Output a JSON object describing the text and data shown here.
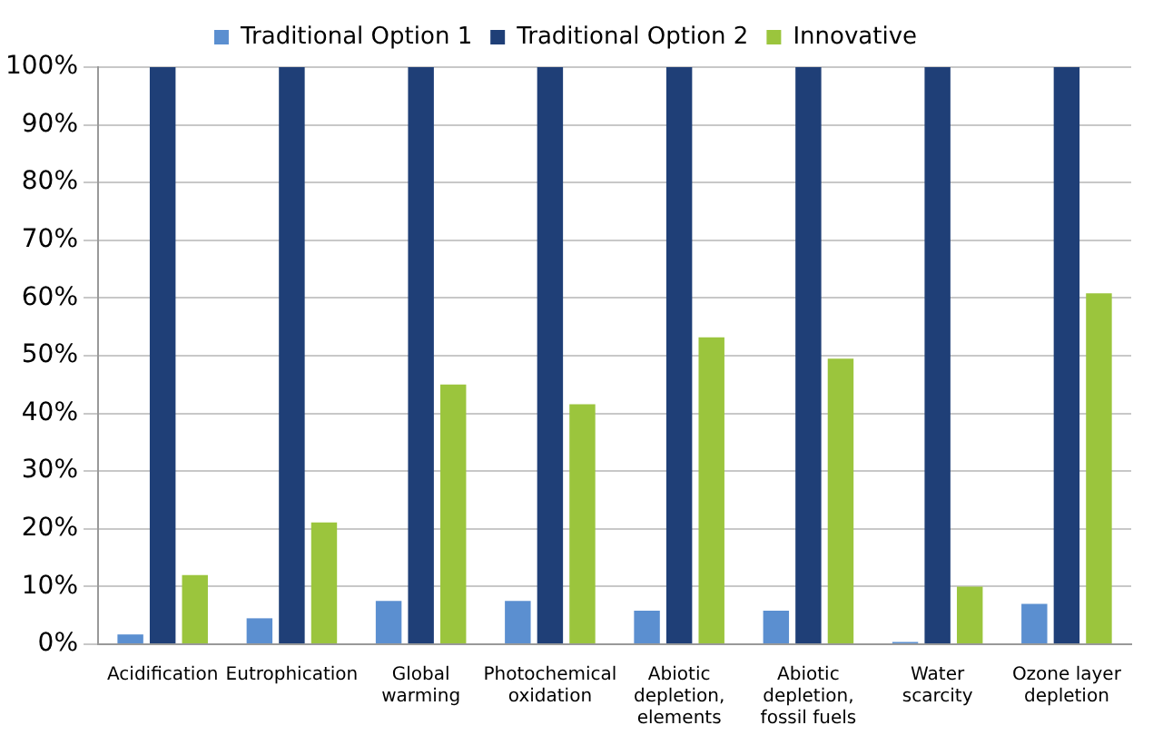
{
  "chart_data": {
    "type": "bar",
    "categories": [
      "Acidification",
      "Eutrophication",
      "Global warming",
      "Photochemical oxidation",
      "Abiotic depletion, elements",
      "Abiotic depletion, fossil fuels",
      "Water scarcity",
      "Ozone layer depletion"
    ],
    "series": [
      {
        "name": "Traditional Option 1",
        "color": "#5b8fd0",
        "values": [
          1.7,
          4.5,
          7.5,
          7.5,
          5.8,
          5.8,
          0.4,
          7.0
        ]
      },
      {
        "name": "Traditional Option 2",
        "color": "#1f3f77",
        "values": [
          100,
          100,
          100,
          100,
          100,
          100,
          100,
          100
        ]
      },
      {
        "name": "Innovative",
        "color": "#9bc53d",
        "values": [
          12,
          21.1,
          45,
          41.6,
          53.2,
          49.5,
          10,
          60.8
        ]
      }
    ],
    "ylim": [
      0,
      100
    ],
    "yticks": [
      {
        "value": 0,
        "label": "0%"
      },
      {
        "value": 10,
        "label": "10%"
      },
      {
        "value": 20,
        "label": "20%"
      },
      {
        "value": 30,
        "label": "30%"
      },
      {
        "value": 40,
        "label": "40%"
      },
      {
        "value": 50,
        "label": "50%"
      },
      {
        "value": 60,
        "label": "60%"
      },
      {
        "value": 70,
        "label": "70%"
      },
      {
        "value": 80,
        "label": "80%"
      },
      {
        "value": 90,
        "label": "90%"
      },
      {
        "value": 100,
        "label": "100%"
      }
    ],
    "grid": "y",
    "legend": "top"
  }
}
